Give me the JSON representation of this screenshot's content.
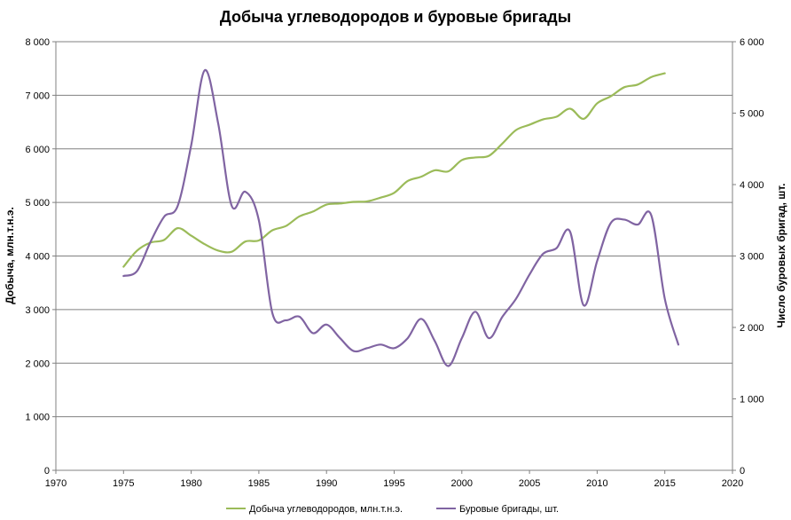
{
  "chart_data": {
    "type": "line",
    "title": "Добыча углеводородов и буровые бригады",
    "xlabel": "",
    "ylabel_left": "Добыча, млн.т.н.э.",
    "ylabel_right": "Число буровых бригад, шт.",
    "xlim": [
      1970,
      2020
    ],
    "ylim_left": [
      0,
      8000
    ],
    "ylim_right": [
      0,
      6000
    ],
    "x_ticks": [
      "1970",
      "1975",
      "1980",
      "1985",
      "1990",
      "1995",
      "2000",
      "2005",
      "2010",
      "2015",
      "2020"
    ],
    "y_ticks_left": [
      "0",
      "1 000",
      "2 000",
      "3 000",
      "4 000",
      "5 000",
      "6 000",
      "7 000",
      "8 000"
    ],
    "y_ticks_right": [
      "0",
      "1 000",
      "2 000",
      "3 000",
      "4 000",
      "5 000",
      "6 000"
    ],
    "grid": "horizontal",
    "legend_position": "bottom",
    "colors": {
      "production": "#9bbb59",
      "rigs": "#8064a2",
      "grid": "#808080"
    },
    "series": [
      {
        "name": "Добыча углеводородов, млн.т.н.э.",
        "axis": "left",
        "x": [
          1975,
          1976,
          1977,
          1978,
          1979,
          1980,
          1981,
          1982,
          1983,
          1984,
          1985,
          1986,
          1987,
          1988,
          1989,
          1990,
          1991,
          1992,
          1993,
          1994,
          1995,
          1996,
          1997,
          1998,
          1999,
          2000,
          2001,
          2002,
          2003,
          2004,
          2005,
          2006,
          2007,
          2008,
          2009,
          2010,
          2011,
          2012,
          2013,
          2014,
          2015
        ],
        "y": [
          3800,
          4100,
          4250,
          4300,
          4520,
          4380,
          4220,
          4100,
          4080,
          4270,
          4290,
          4480,
          4560,
          4740,
          4830,
          4960,
          4980,
          5010,
          5020,
          5090,
          5180,
          5400,
          5480,
          5600,
          5580,
          5790,
          5840,
          5870,
          6100,
          6350,
          6450,
          6550,
          6600,
          6750,
          6560,
          6850,
          6980,
          7150,
          7200,
          7340,
          7410
        ]
      },
      {
        "name": "Буровые бригады, шт.",
        "axis": "right",
        "x": [
          1975,
          1976,
          1977,
          1978,
          1979,
          1980,
          1981,
          1982,
          1983,
          1984,
          1985,
          1986,
          1987,
          1988,
          1989,
          1990,
          1991,
          1992,
          1993,
          1994,
          1995,
          1996,
          1997,
          1998,
          1999,
          2000,
          2001,
          2002,
          2003,
          2004,
          2005,
          2006,
          2007,
          2008,
          2009,
          2010,
          2011,
          2012,
          2013,
          2014,
          2015,
          2016
        ],
        "y": [
          2720,
          2790,
          3200,
          3550,
          3700,
          4550,
          5600,
          4850,
          3700,
          3900,
          3500,
          2200,
          2100,
          2150,
          1920,
          2040,
          1850,
          1670,
          1710,
          1760,
          1710,
          1850,
          2120,
          1810,
          1460,
          1850,
          2220,
          1850,
          2150,
          2400,
          2740,
          3030,
          3110,
          3340,
          2310,
          2930,
          3460,
          3510,
          3440,
          3570,
          2400,
          1760
        ]
      }
    ]
  }
}
